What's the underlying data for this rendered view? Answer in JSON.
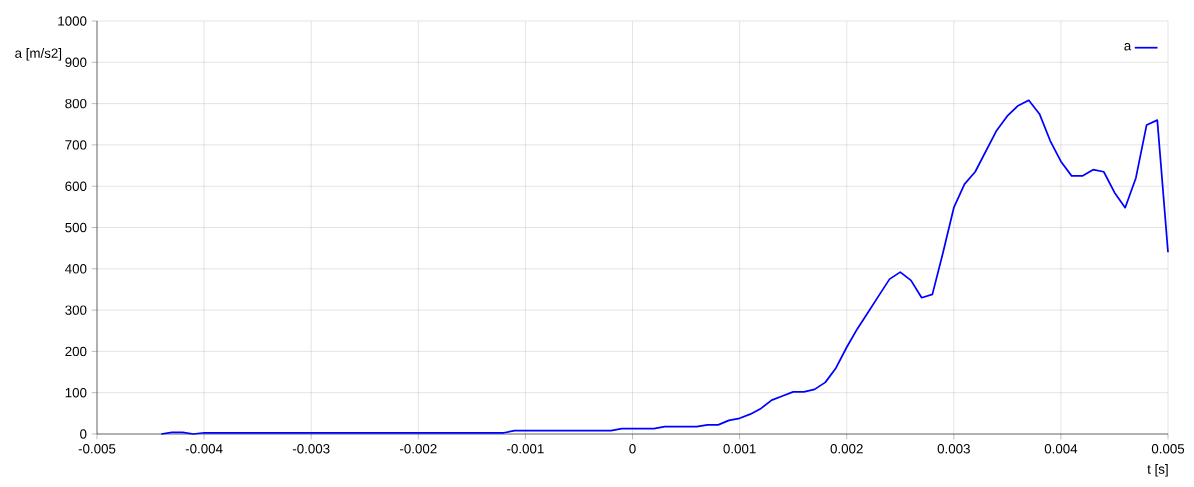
{
  "chart_data": {
    "type": "line",
    "xlabel": "t [s]",
    "ylabel": "a [m/s2]",
    "x": [
      -0.0044,
      -0.0043,
      -0.0042,
      -0.0041,
      -0.004,
      -0.0012,
      -0.0011,
      -0.0002,
      -0.0001,
      0.0002,
      0.0003,
      0.0006,
      0.0007,
      0.0008,
      0.0009,
      0.001,
      0.0011,
      0.0012,
      0.0013,
      0.0014,
      0.0015,
      0.0016,
      0.0017,
      0.0018,
      0.0019,
      0.002,
      0.0021,
      0.0022,
      0.0023,
      0.0024,
      0.0025,
      0.0026,
      0.0027,
      0.0028,
      0.0029,
      0.003,
      0.0031,
      0.0032,
      0.0033,
      0.0034,
      0.0035,
      0.0036,
      0.0037,
      0.0038,
      0.0039,
      0.004,
      0.0041,
      0.0042,
      0.0043,
      0.0044,
      0.0045,
      0.0046,
      0.0047,
      0.0048,
      0.0049,
      0.005
    ],
    "series": [
      {
        "name": "a",
        "color": "#0000ff",
        "values": [
          0,
          4,
          4,
          0,
          3,
          3,
          8,
          8,
          13,
          13,
          18,
          18,
          22,
          22,
          33,
          38,
          48,
          62,
          82,
          92,
          102,
          102,
          108,
          125,
          160,
          210,
          255,
          295,
          335,
          375,
          392,
          372,
          330,
          338,
          440,
          548,
          605,
          635,
          685,
          735,
          770,
          795,
          808,
          775,
          710,
          660,
          625,
          625,
          640,
          635,
          585,
          548,
          620,
          748,
          760,
          440
        ]
      }
    ],
    "xlim": [
      -0.005,
      0.005
    ],
    "ylim": [
      0,
      1000
    ],
    "xticks": [
      -0.005,
      -0.004,
      -0.003,
      -0.002,
      -0.001,
      0,
      0.001,
      0.002,
      0.003,
      0.004,
      0.005
    ],
    "yticks": [
      0,
      100,
      200,
      300,
      400,
      500,
      600,
      700,
      800,
      900,
      1000
    ],
    "grid": true,
    "legend": "top right",
    "marker": "none",
    "line_style": "solid"
  }
}
